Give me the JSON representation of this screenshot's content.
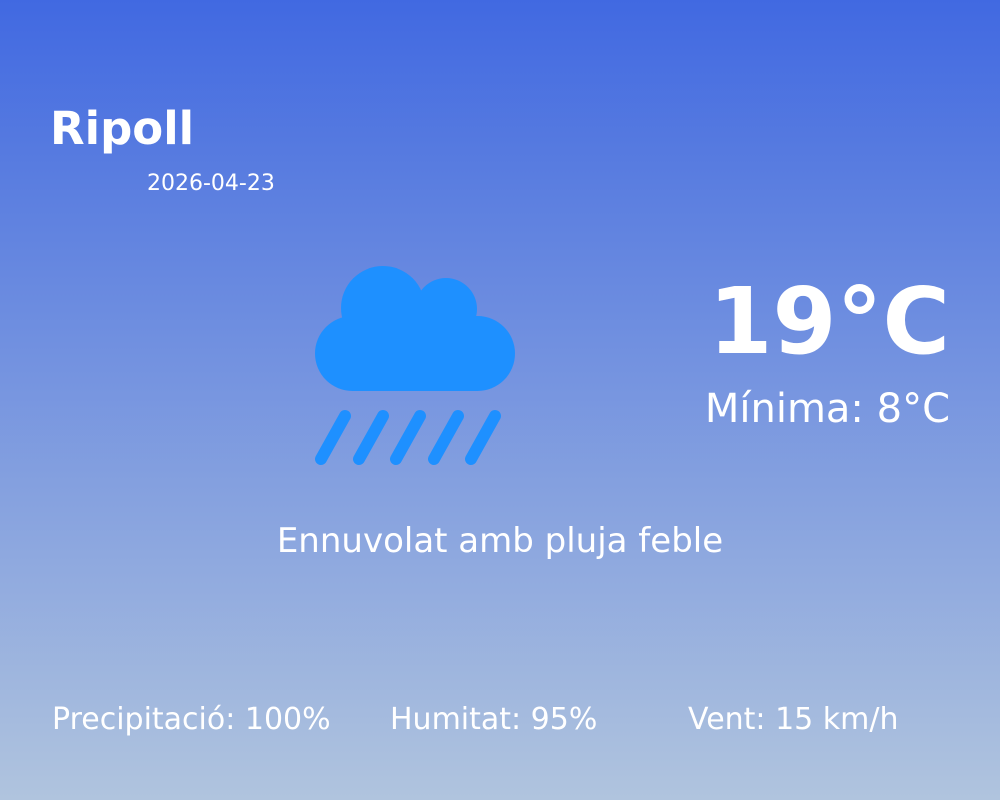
{
  "location": {
    "city": "Ripoll",
    "date": "2026-04-23"
  },
  "current": {
    "temperature": "19°C",
    "minimum": "Mínima: 8°C",
    "description": "Ennuvolat amb pluja feble",
    "icon": "cloud-rain-icon"
  },
  "stats": {
    "precipitation": "Precipitació: 100%",
    "humidity": "Humitat: 95%",
    "wind": "Vent: 15 km/h"
  },
  "colors": {
    "background_top": "#4169E1",
    "background_bottom": "#B0C4DE",
    "icon": "#1E90FF",
    "text": "#FFFFFF"
  }
}
